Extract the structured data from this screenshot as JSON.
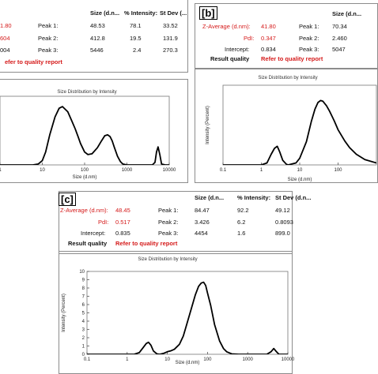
{
  "panels": {
    "a": {
      "results": {
        "headers": [
          "Size (d.n...",
          "% Intensity:",
          "St Dev (..."
        ],
        "rows": [
          {
            "label": "1.80",
            "value": "",
            "peak": "Peak 1:",
            "size": "48.53",
            "intensity": "78.1",
            "stdev": "33.52"
          },
          {
            "label": "604",
            "value": "",
            "peak": "Peak 2:",
            "size": "412.8",
            "intensity": "19.5",
            "stdev": "131.9"
          },
          {
            "label": "004",
            "value": "",
            "peak": "Peak 3:",
            "size": "5446",
            "intensity": "2.4",
            "stdev": "270.3"
          }
        ],
        "quality_label": "",
        "quality_link": "efer to quality report"
      }
    },
    "b": {
      "tag": "[b]",
      "results": {
        "headers": [
          "Size (d.n..."
        ],
        "rows": [
          {
            "label": "Z-Average (d.nm):",
            "value": "41.80",
            "peak": "Peak 1:",
            "size": "70.34"
          },
          {
            "label": "PdI:",
            "value": "0.347",
            "peak": "Peak 2:",
            "size": "2.460"
          },
          {
            "label": "Intercept:",
            "value": "0.834",
            "peak": "Peak 3:",
            "size": "5047"
          }
        ],
        "quality_label": "Result quality",
        "quality_link": "Refer to quality report"
      }
    },
    "c": {
      "tag": "[c]",
      "results": {
        "headers": [
          "Size (d.n...",
          "% Intensity:",
          "St Dev (d.n..."
        ],
        "rows": [
          {
            "label": "Z-Average (d.nm):",
            "value": "48.45",
            "peak": "Peak 1:",
            "size": "84.47",
            "intensity": "92.2",
            "stdev": "49.12"
          },
          {
            "label": "PdI:",
            "value": "0.517",
            "peak": "Peak 2:",
            "size": "3.426",
            "intensity": "6.2",
            "stdev": "0.8093"
          },
          {
            "label": "Intercept:",
            "value": "0.835",
            "peak": "Peak 3:",
            "size": "4454",
            "intensity": "1.6",
            "stdev": "899.0"
          }
        ],
        "quality_label": "Result quality",
        "quality_link": "Refer to quality report"
      }
    }
  },
  "colors": {
    "red_text": "#d51a1a",
    "curve": "#000000",
    "frame": "#8c8c8c"
  },
  "chart_data": [
    {
      "type": "line",
      "panel": "a",
      "title": "Size Distribution by Intensity",
      "xlabel": "Size (d.nm)",
      "ylabel": "",
      "xscale": "log",
      "xlim": [
        1,
        10000
      ],
      "ylim": [
        0,
        8
      ],
      "xticks": [
        "1",
        "10",
        "100",
        "1000",
        "10000"
      ],
      "yticks": [],
      "x": [
        1,
        3,
        6,
        8,
        10,
        12,
        15,
        20,
        25,
        30,
        40,
        50,
        60,
        70,
        80,
        100,
        120,
        150,
        200,
        250,
        300,
        350,
        400,
        450,
        500,
        600,
        700,
        800,
        1000,
        2000,
        4000,
        4600,
        5000,
        5446,
        6000,
        6600,
        8000,
        10000
      ],
      "y": [
        0,
        0,
        0,
        0.1,
        0.5,
        1.5,
        3.5,
        5.6,
        6.6,
        6.8,
        6.2,
        5.1,
        4.2,
        3.3,
        2.5,
        1.5,
        1.2,
        1.3,
        2.0,
        2.8,
        3.4,
        3.5,
        3.3,
        2.8,
        2.1,
        1.0,
        0.4,
        0.1,
        0,
        0,
        0,
        0.3,
        1.5,
        2.1,
        1.2,
        0.1,
        0,
        0
      ]
    },
    {
      "type": "line",
      "panel": "b",
      "title": "Size Distribution by Intensity",
      "xlabel": "Size (d.nm)",
      "ylabel": "Intensity (Percent)",
      "xscale": "log",
      "xlim": [
        0.1,
        1000
      ],
      "ylim": [
        0,
        12
      ],
      "xticks": [
        "0.1",
        "1",
        "10",
        "100"
      ],
      "yticks": [],
      "x": [
        0.1,
        1,
        1.4,
        1.8,
        2.2,
        2.6,
        3.0,
        3.6,
        4.5,
        5,
        8,
        10,
        15,
        20,
        25,
        30,
        35,
        40,
        50,
        60,
        70,
        80,
        100,
        150,
        200,
        300,
        500,
        1000
      ],
      "y": [
        0,
        0,
        0.3,
        1.6,
        2.5,
        2.8,
        2.0,
        0.7,
        0.1,
        0,
        0.3,
        1.0,
        3.5,
        6.5,
        8.4,
        9.4,
        9.7,
        9.6,
        8.9,
        8.1,
        7.3,
        6.6,
        5.3,
        3.6,
        2.6,
        1.6,
        0.8,
        0.3
      ]
    },
    {
      "type": "line",
      "panel": "c",
      "title": "Size Distribution by Intensity",
      "xlabel": "Size (d.nm)",
      "ylabel": "Intensity (Percent)",
      "xscale": "log",
      "xlim": [
        0.1,
        10000
      ],
      "ylim": [
        0,
        10
      ],
      "xticks": [
        "0.1",
        "1",
        "10",
        "100",
        "1000",
        "10000"
      ],
      "yticks": [
        "0",
        "1",
        "2",
        "3",
        "4",
        "5",
        "6",
        "7",
        "8",
        "9",
        "10"
      ],
      "x": [
        0.1,
        1.5,
        2.0,
        2.5,
        3.0,
        3.4,
        3.9,
        4.5,
        5.5,
        6.5,
        8,
        10,
        12,
        15,
        20,
        25,
        30,
        40,
        50,
        60,
        70,
        80,
        90,
        100,
        120,
        150,
        200,
        250,
        300,
        400,
        600,
        1000,
        3000,
        3800,
        4454,
        5200,
        6000,
        10000
      ],
      "y": [
        0,
        0,
        0.2,
        0.8,
        1.3,
        1.45,
        1.1,
        0.4,
        0.05,
        0,
        0.1,
        0.3,
        0.4,
        0.6,
        1.2,
        2.2,
        3.5,
        5.6,
        7.2,
        8.2,
        8.6,
        8.7,
        8.3,
        7.4,
        5.9,
        3.6,
        1.6,
        0.7,
        0.3,
        0.05,
        0,
        0,
        0,
        0.3,
        0.7,
        0.3,
        0,
        0
      ]
    }
  ]
}
